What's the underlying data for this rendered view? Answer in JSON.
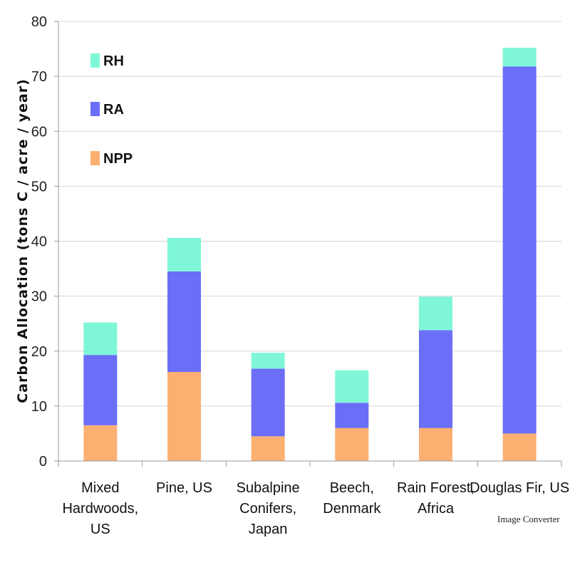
{
  "chart_data": {
    "type": "bar",
    "stacked": true,
    "categories": [
      [
        "Mixed",
        "Hardwoods,",
        "US"
      ],
      [
        "Pine, US"
      ],
      [
        "Subalpine",
        "Conifers,",
        "Japan"
      ],
      [
        "Beech,",
        "Denmark"
      ],
      [
        "Rain Forest,",
        "Africa"
      ],
      [
        "Douglas Fir, US"
      ]
    ],
    "series": [
      {
        "name": "NPP",
        "color": "#fbb072",
        "values": [
          6.5,
          16.2,
          4.5,
          6.0,
          6.0,
          5.0
        ]
      },
      {
        "name": "RA",
        "color": "#6b6ef7",
        "values": [
          12.8,
          18.3,
          12.3,
          4.6,
          17.8,
          66.8
        ]
      },
      {
        "name": "RH",
        "color": "#7ff7d7",
        "values": [
          5.9,
          6.1,
          2.9,
          5.9,
          6.1,
          3.4
        ]
      }
    ],
    "legend_order": [
      "RH",
      "RA",
      "NPP"
    ],
    "legend_position": "top-left",
    "ylabel": "Carbon Allocation (tons C / acre / year)",
    "xlabel": "",
    "title": "",
    "ylim": [
      0,
      80
    ],
    "yticks": [
      0,
      10,
      20,
      30,
      40,
      50,
      60,
      70,
      80
    ],
    "grid": true
  },
  "watermark": "Image Converter"
}
